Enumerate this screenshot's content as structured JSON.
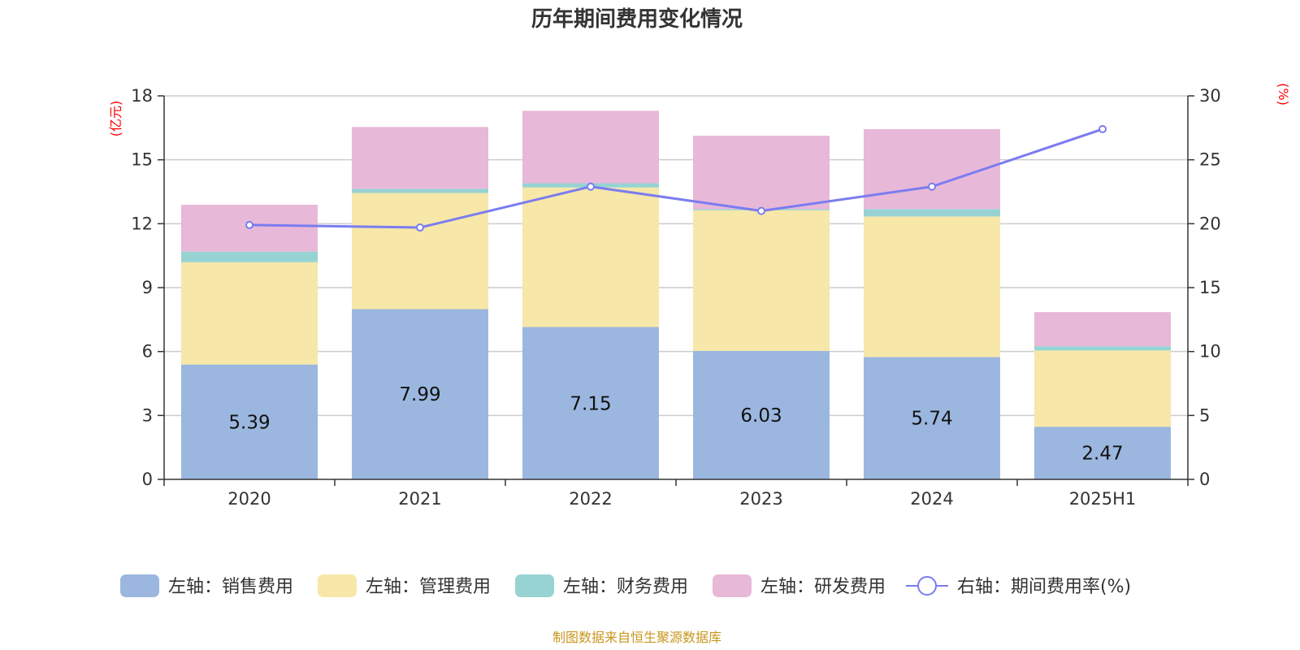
{
  "chart_data": {
    "type": "bar",
    "stacked": true,
    "title": "历年期间费用变化情况",
    "categories": [
      "2020",
      "2021",
      "2022",
      "2023",
      "2024",
      "2025H1"
    ],
    "left_axis": {
      "unit": "(亿元)",
      "ylim": [
        0,
        18
      ],
      "ticks": [
        "0",
        "3",
        "6",
        "9",
        "12",
        "15",
        "18"
      ]
    },
    "right_axis": {
      "unit": "(%)",
      "ylim": [
        0,
        30
      ],
      "ticks": [
        "0",
        "5",
        "10",
        "15",
        "20",
        "25",
        "30"
      ]
    },
    "series": [
      {
        "name": "左轴：销售费用",
        "color": "#9bb7e0",
        "values": [
          5.39,
          7.99,
          7.15,
          6.03,
          5.74,
          2.47
        ],
        "labels": [
          "5.39",
          "7.99",
          "7.15",
          "6.03",
          "5.74",
          "2.47"
        ]
      },
      {
        "name": "左轴：管理费用",
        "color": "#f7e7a8",
        "values": [
          4.8,
          5.45,
          6.55,
          6.6,
          6.6,
          3.58
        ]
      },
      {
        "name": "左轴：财务费用",
        "color": "#98d3d3",
        "values": [
          0.5,
          0.2,
          0.2,
          0.05,
          0.35,
          0.2
        ]
      },
      {
        "name": "左轴：研发费用",
        "color": "#e8b8d8",
        "values": [
          2.2,
          2.9,
          3.4,
          3.45,
          3.75,
          1.6
        ]
      }
    ],
    "line": {
      "name": "右轴：期间费用率(%)",
      "color": "#7b7cf0",
      "values": [
        19.9,
        19.7,
        22.9,
        21.0,
        22.9,
        27.4
      ]
    },
    "grid": true,
    "legend": "bottom",
    "source": "制图数据来自恒生聚源数据库"
  }
}
